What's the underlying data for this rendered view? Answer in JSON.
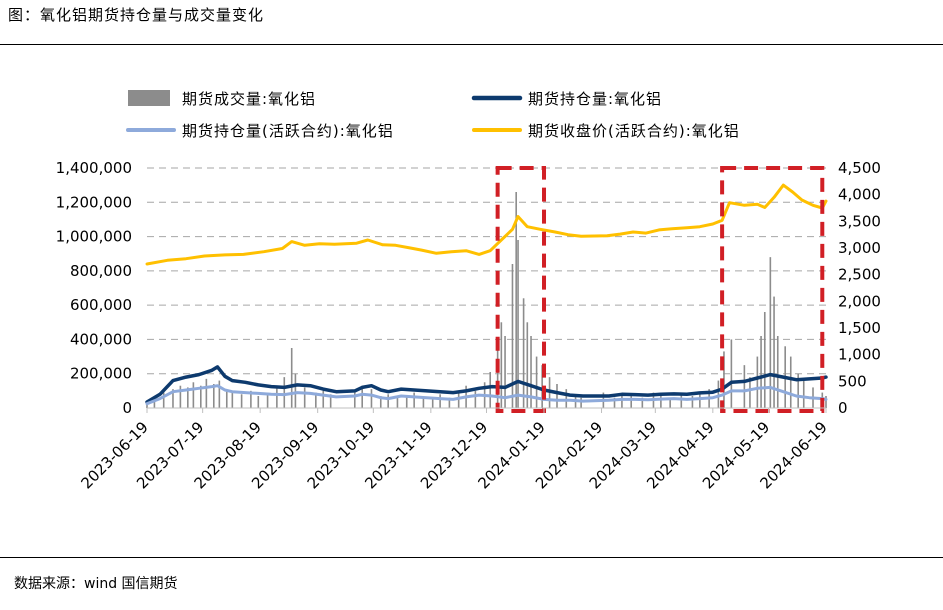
{
  "figure": {
    "title": "图：氧化铝期货持仓量与成交量变化",
    "source_label": "数据来源：",
    "source_value": "wind  国信期货"
  },
  "chart_data": {
    "type": "line",
    "title": "",
    "xlabel": "",
    "ylabel_left": "",
    "ylabel_right": "",
    "ylim_left": [
      0,
      1400000
    ],
    "ylim_right": [
      0,
      4500
    ],
    "yticks_left": [
      "1,400,000",
      "1,200,000",
      "1,000,000",
      "800,000",
      "600,000",
      "400,000",
      "200,000",
      "0"
    ],
    "yticks_right": [
      "4,500",
      "4,000",
      "3,500",
      "3,000",
      "2,500",
      "2,000",
      "1,500",
      "1,000",
      "500",
      "0"
    ],
    "x_ticks": [
      "2023-06-19",
      "2023-07-19",
      "2023-08-19",
      "2023-09-19",
      "2023-10-19",
      "2023-11-19",
      "2023-12-19",
      "2024-01-19",
      "2024-02-19",
      "2024-03-19",
      "2024-04-19",
      "2024-05-19",
      "2024-06-19"
    ],
    "x_range": [
      "2023-06-19",
      "2024-06-19"
    ],
    "grid": true,
    "legend_placement": "top",
    "series": [
      {
        "name": "期货成交量:氧化铝",
        "kind": "bar",
        "axis": "left",
        "color": "#8c8c8c",
        "points": [
          [
            "2023-06-19",
            20000
          ],
          [
            "2023-06-23",
            60000
          ],
          [
            "2023-06-28",
            90000
          ],
          [
            "2023-07-03",
            110000
          ],
          [
            "2023-07-07",
            130000
          ],
          [
            "2023-07-11",
            120000
          ],
          [
            "2023-07-14",
            150000
          ],
          [
            "2023-07-18",
            130000
          ],
          [
            "2023-07-21",
            170000
          ],
          [
            "2023-07-25",
            140000
          ],
          [
            "2023-07-28",
            160000
          ],
          [
            "2023-08-01",
            110000
          ],
          [
            "2023-08-04",
            90000
          ],
          [
            "2023-08-09",
            80000
          ],
          [
            "2023-08-14",
            100000
          ],
          [
            "2023-08-18",
            70000
          ],
          [
            "2023-08-23",
            90000
          ],
          [
            "2023-08-28",
            120000
          ],
          [
            "2023-09-01",
            180000
          ],
          [
            "2023-09-05",
            350000
          ],
          [
            "2023-09-07",
            200000
          ],
          [
            "2023-09-12",
            120000
          ],
          [
            "2023-09-18",
            90000
          ],
          [
            "2023-09-22",
            100000
          ],
          [
            "2023-09-26",
            80000
          ],
          [
            "2023-10-09",
            90000
          ],
          [
            "2023-10-13",
            130000
          ],
          [
            "2023-10-18",
            110000
          ],
          [
            "2023-10-23",
            70000
          ],
          [
            "2023-10-27",
            80000
          ],
          [
            "2023-11-01",
            60000
          ],
          [
            "2023-11-06",
            70000
          ],
          [
            "2023-11-10",
            90000
          ],
          [
            "2023-11-15",
            60000
          ],
          [
            "2023-11-20",
            50000
          ],
          [
            "2023-11-24",
            80000
          ],
          [
            "2023-11-29",
            60000
          ],
          [
            "2023-12-04",
            90000
          ],
          [
            "2023-12-08",
            130000
          ],
          [
            "2023-12-13",
            100000
          ],
          [
            "2023-12-18",
            150000
          ],
          [
            "2023-12-21",
            210000
          ],
          [
            "2023-12-25",
            340000
          ],
          [
            "2023-12-27",
            500000
          ],
          [
            "2023-12-29",
            420000
          ],
          [
            "2024-01-02",
            840000
          ],
          [
            "2024-01-04",
            1260000
          ],
          [
            "2024-01-05",
            980000
          ],
          [
            "2024-01-08",
            640000
          ],
          [
            "2024-01-10",
            500000
          ],
          [
            "2024-01-12",
            420000
          ],
          [
            "2024-01-15",
            300000
          ],
          [
            "2024-01-18",
            250000
          ],
          [
            "2024-01-22",
            180000
          ],
          [
            "2024-01-26",
            140000
          ],
          [
            "2024-01-31",
            110000
          ],
          [
            "2024-02-05",
            80000
          ],
          [
            "2024-02-08",
            60000
          ],
          [
            "2024-02-20",
            90000
          ],
          [
            "2024-02-26",
            60000
          ],
          [
            "2024-03-01",
            80000
          ],
          [
            "2024-03-06",
            70000
          ],
          [
            "2024-03-12",
            60000
          ],
          [
            "2024-03-18",
            90000
          ],
          [
            "2024-03-22",
            70000
          ],
          [
            "2024-03-27",
            60000
          ],
          [
            "2024-04-02",
            80000
          ],
          [
            "2024-04-08",
            70000
          ],
          [
            "2024-04-12",
            90000
          ],
          [
            "2024-04-17",
            110000
          ],
          [
            "2024-04-22",
            160000
          ],
          [
            "2024-04-25",
            330000
          ],
          [
            "2024-04-29",
            400000
          ],
          [
            "2024-05-06",
            250000
          ],
          [
            "2024-05-09",
            180000
          ],
          [
            "2024-05-13",
            300000
          ],
          [
            "2024-05-15",
            420000
          ],
          [
            "2024-05-17",
            560000
          ],
          [
            "2024-05-20",
            880000
          ],
          [
            "2024-05-22",
            650000
          ],
          [
            "2024-05-24",
            420000
          ],
          [
            "2024-05-28",
            360000
          ],
          [
            "2024-05-31",
            300000
          ],
          [
            "2024-06-04",
            200000
          ],
          [
            "2024-06-07",
            160000
          ],
          [
            "2024-06-12",
            120000
          ],
          [
            "2024-06-17",
            90000
          ],
          [
            "2024-06-19",
            70000
          ]
        ]
      },
      {
        "name": "期货持仓量:氧化铝",
        "kind": "line",
        "axis": "left",
        "color": "#0d3a6e",
        "points": [
          [
            "2023-06-19",
            35000
          ],
          [
            "2023-06-26",
            80000
          ],
          [
            "2023-07-03",
            160000
          ],
          [
            "2023-07-10",
            180000
          ],
          [
            "2023-07-17",
            195000
          ],
          [
            "2023-07-24",
            220000
          ],
          [
            "2023-07-27",
            240000
          ],
          [
            "2023-07-31",
            185000
          ],
          [
            "2023-08-04",
            160000
          ],
          [
            "2023-08-11",
            150000
          ],
          [
            "2023-08-18",
            135000
          ],
          [
            "2023-08-25",
            125000
          ],
          [
            "2023-09-01",
            120000
          ],
          [
            "2023-09-08",
            135000
          ],
          [
            "2023-09-15",
            130000
          ],
          [
            "2023-09-22",
            110000
          ],
          [
            "2023-09-29",
            95000
          ],
          [
            "2023-10-09",
            100000
          ],
          [
            "2023-10-13",
            120000
          ],
          [
            "2023-10-18",
            130000
          ],
          [
            "2023-10-23",
            105000
          ],
          [
            "2023-10-27",
            95000
          ],
          [
            "2023-11-03",
            110000
          ],
          [
            "2023-11-10",
            105000
          ],
          [
            "2023-11-17",
            100000
          ],
          [
            "2023-11-24",
            95000
          ],
          [
            "2023-12-01",
            90000
          ],
          [
            "2023-12-08",
            100000
          ],
          [
            "2023-12-15",
            115000
          ],
          [
            "2023-12-22",
            125000
          ],
          [
            "2023-12-29",
            120000
          ],
          [
            "2024-01-05",
            155000
          ],
          [
            "2024-01-12",
            130000
          ],
          [
            "2024-01-19",
            105000
          ],
          [
            "2024-01-26",
            90000
          ],
          [
            "2024-02-02",
            75000
          ],
          [
            "2024-02-09",
            70000
          ],
          [
            "2024-02-23",
            70000
          ],
          [
            "2024-03-01",
            80000
          ],
          [
            "2024-03-08",
            78000
          ],
          [
            "2024-03-15",
            75000
          ],
          [
            "2024-03-22",
            80000
          ],
          [
            "2024-03-29",
            82000
          ],
          [
            "2024-04-05",
            80000
          ],
          [
            "2024-04-12",
            88000
          ],
          [
            "2024-04-19",
            92000
          ],
          [
            "2024-04-24",
            110000
          ],
          [
            "2024-04-29",
            150000
          ],
          [
            "2024-05-06",
            155000
          ],
          [
            "2024-05-13",
            175000
          ],
          [
            "2024-05-20",
            195000
          ],
          [
            "2024-05-27",
            180000
          ],
          [
            "2024-06-03",
            165000
          ],
          [
            "2024-06-10",
            170000
          ],
          [
            "2024-06-17",
            175000
          ],
          [
            "2024-06-19",
            180000
          ]
        ]
      },
      {
        "name": "期货持仓量(活跃合约):氧化铝",
        "kind": "line",
        "axis": "left",
        "color": "#8eaadb",
        "points": [
          [
            "2023-06-19",
            25000
          ],
          [
            "2023-06-26",
            55000
          ],
          [
            "2023-07-03",
            95000
          ],
          [
            "2023-07-10",
            105000
          ],
          [
            "2023-07-17",
            115000
          ],
          [
            "2023-07-24",
            125000
          ],
          [
            "2023-07-27",
            130000
          ],
          [
            "2023-07-31",
            105000
          ],
          [
            "2023-08-04",
            95000
          ],
          [
            "2023-08-11",
            90000
          ],
          [
            "2023-08-18",
            85000
          ],
          [
            "2023-08-25",
            80000
          ],
          [
            "2023-09-01",
            78000
          ],
          [
            "2023-09-08",
            90000
          ],
          [
            "2023-09-15",
            85000
          ],
          [
            "2023-09-22",
            75000
          ],
          [
            "2023-09-29",
            65000
          ],
          [
            "2023-10-09",
            70000
          ],
          [
            "2023-10-13",
            80000
          ],
          [
            "2023-10-18",
            75000
          ],
          [
            "2023-10-23",
            60000
          ],
          [
            "2023-10-27",
            55000
          ],
          [
            "2023-11-03",
            70000
          ],
          [
            "2023-11-10",
            65000
          ],
          [
            "2023-11-17",
            60000
          ],
          [
            "2023-11-24",
            55000
          ],
          [
            "2023-12-01",
            50000
          ],
          [
            "2023-12-08",
            65000
          ],
          [
            "2023-12-15",
            75000
          ],
          [
            "2023-12-22",
            70000
          ],
          [
            "2023-12-29",
            60000
          ],
          [
            "2024-01-05",
            75000
          ],
          [
            "2024-01-12",
            65000
          ],
          [
            "2024-01-19",
            50000
          ],
          [
            "2024-01-26",
            45000
          ],
          [
            "2024-02-02",
            45000
          ],
          [
            "2024-02-09",
            40000
          ],
          [
            "2024-02-23",
            45000
          ],
          [
            "2024-03-01",
            50000
          ],
          [
            "2024-03-08",
            50000
          ],
          [
            "2024-03-15",
            48000
          ],
          [
            "2024-03-22",
            52000
          ],
          [
            "2024-03-29",
            55000
          ],
          [
            "2024-04-05",
            50000
          ],
          [
            "2024-04-12",
            55000
          ],
          [
            "2024-04-19",
            60000
          ],
          [
            "2024-04-24",
            75000
          ],
          [
            "2024-04-29",
            100000
          ],
          [
            "2024-05-06",
            100000
          ],
          [
            "2024-05-13",
            115000
          ],
          [
            "2024-05-20",
            120000
          ],
          [
            "2024-05-27",
            95000
          ],
          [
            "2024-06-03",
            70000
          ],
          [
            "2024-06-10",
            60000
          ],
          [
            "2024-06-17",
            55000
          ],
          [
            "2024-06-19",
            50000
          ]
        ]
      },
      {
        "name": "期货收盘价(活跃合约):氧化铝",
        "kind": "line",
        "axis": "right",
        "color": "#ffc000",
        "points": [
          [
            "2023-06-19",
            2700
          ],
          [
            "2023-06-30",
            2770
          ],
          [
            "2023-07-10",
            2800
          ],
          [
            "2023-07-20",
            2850
          ],
          [
            "2023-07-31",
            2870
          ],
          [
            "2023-08-10",
            2880
          ],
          [
            "2023-08-21",
            2930
          ],
          [
            "2023-08-31",
            2990
          ],
          [
            "2023-09-05",
            3120
          ],
          [
            "2023-09-12",
            3050
          ],
          [
            "2023-09-20",
            3080
          ],
          [
            "2023-09-28",
            3070
          ],
          [
            "2023-10-10",
            3090
          ],
          [
            "2023-10-16",
            3150
          ],
          [
            "2023-10-24",
            3060
          ],
          [
            "2023-10-31",
            3050
          ],
          [
            "2023-11-08",
            3000
          ],
          [
            "2023-11-14",
            2960
          ],
          [
            "2023-11-22",
            2900
          ],
          [
            "2023-11-30",
            2930
          ],
          [
            "2023-12-08",
            2950
          ],
          [
            "2023-12-15",
            2880
          ],
          [
            "2023-12-21",
            2950
          ],
          [
            "2023-12-27",
            3150
          ],
          [
            "2024-01-02",
            3350
          ],
          [
            "2024-01-05",
            3590
          ],
          [
            "2024-01-10",
            3400
          ],
          [
            "2024-01-17",
            3350
          ],
          [
            "2024-01-25",
            3300
          ],
          [
            "2024-02-01",
            3250
          ],
          [
            "2024-02-08",
            3220
          ],
          [
            "2024-02-22",
            3230
          ],
          [
            "2024-02-29",
            3260
          ],
          [
            "2024-03-07",
            3300
          ],
          [
            "2024-03-14",
            3280
          ],
          [
            "2024-03-21",
            3340
          ],
          [
            "2024-03-28",
            3360
          ],
          [
            "2024-04-05",
            3380
          ],
          [
            "2024-04-12",
            3400
          ],
          [
            "2024-04-19",
            3450
          ],
          [
            "2024-04-24",
            3520
          ],
          [
            "2024-04-28",
            3850
          ],
          [
            "2024-05-06",
            3800
          ],
          [
            "2024-05-13",
            3820
          ],
          [
            "2024-05-17",
            3760
          ],
          [
            "2024-05-22",
            3950
          ],
          [
            "2024-05-27",
            4180
          ],
          [
            "2024-06-01",
            4050
          ],
          [
            "2024-06-06",
            3900
          ],
          [
            "2024-06-12",
            3800
          ],
          [
            "2024-06-17",
            3750
          ],
          [
            "2024-06-19",
            3880
          ]
        ]
      }
    ],
    "highlight_boxes": [
      {
        "from": "2023-12-25",
        "to": "2024-01-19",
        "color": "#d11f25",
        "style": "dashed"
      },
      {
        "from": "2024-04-24",
        "to": "2024-06-17",
        "color": "#d11f25",
        "style": "dashed"
      }
    ]
  }
}
